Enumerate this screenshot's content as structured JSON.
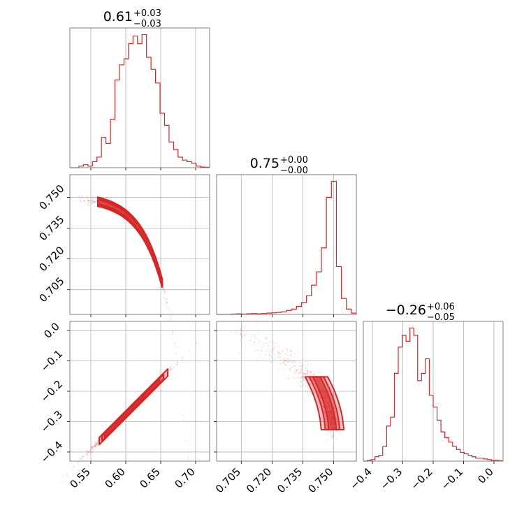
{
  "chart_data": {
    "type": "corner",
    "color": "#d62728",
    "params": [
      {
        "title": {
          "main": "0.61",
          "up": "+0.03",
          "down": "−0.03"
        },
        "range": [
          0.52,
          0.72
        ],
        "ticks": [
          0.55,
          0.6,
          0.65,
          0.7
        ],
        "tick_labels": [
          "0.55",
          "0.60",
          "0.65",
          "0.70"
        ],
        "hist": [
          0,
          0,
          1,
          2,
          1,
          4,
          7,
          20,
          16,
          32,
          58,
          68,
          72,
          82,
          87,
          82,
          88,
          73,
          65,
          56,
          36,
          28,
          17,
          12,
          7,
          5,
          4,
          3,
          1,
          0.5,
          0.3
        ]
      },
      {
        "title": {
          "main": "0.75",
          "up": "+0.00",
          "down": "−0.00"
        },
        "range": [
          0.693,
          0.761
        ],
        "ticks": [
          0.705,
          0.72,
          0.735,
          0.75
        ],
        "tick_labels": [
          "0.705",
          "0.720",
          "0.735",
          "0.750"
        ],
        "hist": [
          0,
          0,
          0,
          0.3,
          0.5,
          0.3,
          0.5,
          0.7,
          0.5,
          0.7,
          1,
          1.2,
          1.5,
          2,
          3,
          4,
          6,
          9,
          14,
          22,
          32,
          50,
          88,
          100,
          36,
          12,
          4,
          1
        ]
      },
      {
        "title": {
          "main": "−0.26",
          "up": "+0.06",
          "down": "−0.05"
        },
        "range": [
          -0.43,
          0.03
        ],
        "ticks": [
          -0.4,
          -0.3,
          -0.2,
          -0.1,
          0.0
        ],
        "tick_labels": [
          "−0.4",
          "−0.3",
          "−0.2",
          "−0.1",
          "0.0"
        ],
        "hist": [
          0,
          0.5,
          1,
          3,
          4,
          10,
          24,
          30,
          60,
          78,
          86,
          82,
          91,
          86,
          55,
          60,
          70,
          45,
          37,
          28,
          20,
          16,
          13,
          10,
          8,
          6,
          5,
          4,
          3,
          2,
          2,
          1.5,
          1,
          0.5,
          0.5,
          0.3
        ]
      }
    ],
    "y_tick_labels_row1": [
      "0.705",
      "0.720",
      "0.735",
      "0.750"
    ],
    "y_tick_labels_row2": [
      "−0.4",
      "−0.3",
      "−0.2",
      "−0.1",
      "0.0"
    ]
  }
}
